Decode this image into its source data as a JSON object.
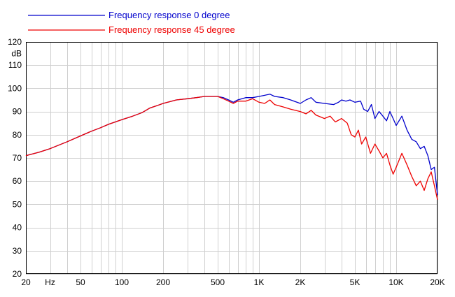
{
  "chart_data": {
    "type": "line",
    "title": "",
    "xlabel": "",
    "ylabel": "",
    "x_scale": "log",
    "xlim": [
      20,
      20000
    ],
    "ylim": [
      20,
      120
    ],
    "x_ticks": [
      {
        "value": 20,
        "label": "20"
      },
      {
        "value": 30,
        "label": "Hz"
      },
      {
        "value": 50,
        "label": "50"
      },
      {
        "value": 100,
        "label": "100"
      },
      {
        "value": 200,
        "label": "200"
      },
      {
        "value": 500,
        "label": "500"
      },
      {
        "value": 1000,
        "label": "1K"
      },
      {
        "value": 2000,
        "label": "2K"
      },
      {
        "value": 5000,
        "label": "5K"
      },
      {
        "value": 10000,
        "label": "10K"
      },
      {
        "value": 20000,
        "label": "20K"
      }
    ],
    "y_ticks": [
      20,
      30,
      40,
      50,
      60,
      70,
      80,
      90,
      100,
      110,
      120
    ],
    "y_unit_label": "dB",
    "grid": true,
    "legend_position": "top-left",
    "series": [
      {
        "name": "Frequency response 0 degree",
        "color": "#0000cc",
        "points": [
          [
            20,
            71
          ],
          [
            25,
            72.5
          ],
          [
            30,
            74
          ],
          [
            40,
            77
          ],
          [
            50,
            79.5
          ],
          [
            60,
            81.5
          ],
          [
            70,
            83
          ],
          [
            80,
            84.5
          ],
          [
            100,
            86.5
          ],
          [
            120,
            88
          ],
          [
            140,
            89.5
          ],
          [
            150,
            90.5
          ],
          [
            160,
            91.5
          ],
          [
            180,
            92.5
          ],
          [
            200,
            93.5
          ],
          [
            250,
            95
          ],
          [
            300,
            95.5
          ],
          [
            350,
            96
          ],
          [
            400,
            96.5
          ],
          [
            450,
            96.5
          ],
          [
            500,
            96.5
          ],
          [
            550,
            96
          ],
          [
            600,
            95
          ],
          [
            650,
            94
          ],
          [
            700,
            95
          ],
          [
            800,
            96
          ],
          [
            900,
            96
          ],
          [
            1000,
            96.5
          ],
          [
            1100,
            97
          ],
          [
            1200,
            97.5
          ],
          [
            1300,
            96.5
          ],
          [
            1500,
            96
          ],
          [
            1700,
            95
          ],
          [
            2000,
            93.5
          ],
          [
            2200,
            95
          ],
          [
            2400,
            96
          ],
          [
            2600,
            94
          ],
          [
            3000,
            93.5
          ],
          [
            3500,
            93
          ],
          [
            3800,
            94
          ],
          [
            4000,
            95
          ],
          [
            4300,
            94.5
          ],
          [
            4600,
            95
          ],
          [
            5000,
            94
          ],
          [
            5500,
            94.5
          ],
          [
            5800,
            91
          ],
          [
            6200,
            90
          ],
          [
            6600,
            93
          ],
          [
            7000,
            87
          ],
          [
            7500,
            90
          ],
          [
            8000,
            88
          ],
          [
            8500,
            86
          ],
          [
            9000,
            90
          ],
          [
            9500,
            87
          ],
          [
            10000,
            84
          ],
          [
            11000,
            88
          ],
          [
            12000,
            82
          ],
          [
            13000,
            78
          ],
          [
            14000,
            77
          ],
          [
            15000,
            74
          ],
          [
            16000,
            75
          ],
          [
            17000,
            71
          ],
          [
            18000,
            65
          ],
          [
            19000,
            66
          ],
          [
            19500,
            60
          ],
          [
            20000,
            54
          ]
        ]
      },
      {
        "name": "Frequency response 45 degree",
        "color": "#ee0000",
        "points": [
          [
            20,
            71
          ],
          [
            25,
            72.5
          ],
          [
            30,
            74
          ],
          [
            40,
            77
          ],
          [
            50,
            79.5
          ],
          [
            60,
            81.5
          ],
          [
            70,
            83
          ],
          [
            80,
            84.5
          ],
          [
            100,
            86.5
          ],
          [
            120,
            88
          ],
          [
            140,
            89.5
          ],
          [
            150,
            90.5
          ],
          [
            160,
            91.5
          ],
          [
            180,
            92.5
          ],
          [
            200,
            93.5
          ],
          [
            250,
            95
          ],
          [
            300,
            95.5
          ],
          [
            350,
            96
          ],
          [
            400,
            96.5
          ],
          [
            450,
            96.5
          ],
          [
            500,
            96.5
          ],
          [
            550,
            95.5
          ],
          [
            600,
            94.5
          ],
          [
            650,
            93.5
          ],
          [
            700,
            94.5
          ],
          [
            800,
            94.5
          ],
          [
            900,
            95.5
          ],
          [
            1000,
            94
          ],
          [
            1100,
            93.5
          ],
          [
            1200,
            95
          ],
          [
            1300,
            93
          ],
          [
            1500,
            92
          ],
          [
            1700,
            91
          ],
          [
            2000,
            90
          ],
          [
            2200,
            89
          ],
          [
            2400,
            90.5
          ],
          [
            2600,
            88.5
          ],
          [
            3000,
            87
          ],
          [
            3300,
            88
          ],
          [
            3600,
            85.5
          ],
          [
            4000,
            87
          ],
          [
            4400,
            85
          ],
          [
            4700,
            80
          ],
          [
            5000,
            79
          ],
          [
            5300,
            82
          ],
          [
            5600,
            76
          ],
          [
            6000,
            79
          ],
          [
            6500,
            72
          ],
          [
            7000,
            76
          ],
          [
            7500,
            73
          ],
          [
            8000,
            70
          ],
          [
            8500,
            72
          ],
          [
            9000,
            67
          ],
          [
            9500,
            63
          ],
          [
            10000,
            66
          ],
          [
            11000,
            72
          ],
          [
            12000,
            67
          ],
          [
            13000,
            62
          ],
          [
            14000,
            58
          ],
          [
            15000,
            60
          ],
          [
            16000,
            56
          ],
          [
            17000,
            61
          ],
          [
            18000,
            64
          ],
          [
            19000,
            58
          ],
          [
            20000,
            52
          ]
        ]
      }
    ]
  }
}
